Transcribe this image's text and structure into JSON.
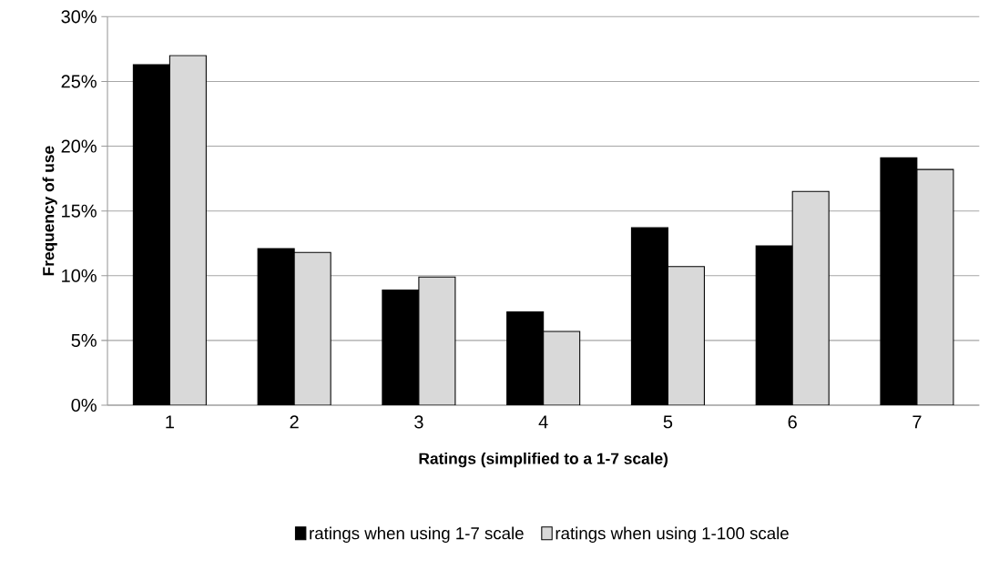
{
  "chart_data": {
    "type": "bar",
    "xlabel": "Ratings (simplified to a 1-7 scale)",
    "ylabel": "Frequency of use",
    "categories": [
      "1",
      "2",
      "3",
      "4",
      "5",
      "6",
      "7"
    ],
    "series": [
      {
        "name": "ratings when using 1-7 scale",
        "color": "#000000",
        "values": [
          26.3,
          12.1,
          8.9,
          7.2,
          13.7,
          12.3,
          19.1
        ]
      },
      {
        "name": "ratings when using 1-100 scale",
        "color": "#d9d9d9",
        "values": [
          27.0,
          11.8,
          9.9,
          5.7,
          10.7,
          16.5,
          18.2
        ]
      }
    ],
    "ylim": [
      0,
      30
    ],
    "yticks": [
      {
        "value": 0,
        "label": "0%"
      },
      {
        "value": 5,
        "label": "5%"
      },
      {
        "value": 10,
        "label": "10%"
      },
      {
        "value": 15,
        "label": "15%"
      },
      {
        "value": 20,
        "label": "20%"
      },
      {
        "value": 25,
        "label": "25%"
      },
      {
        "value": 30,
        "label": "30%"
      }
    ],
    "grid": "y",
    "legend": "bottom"
  }
}
